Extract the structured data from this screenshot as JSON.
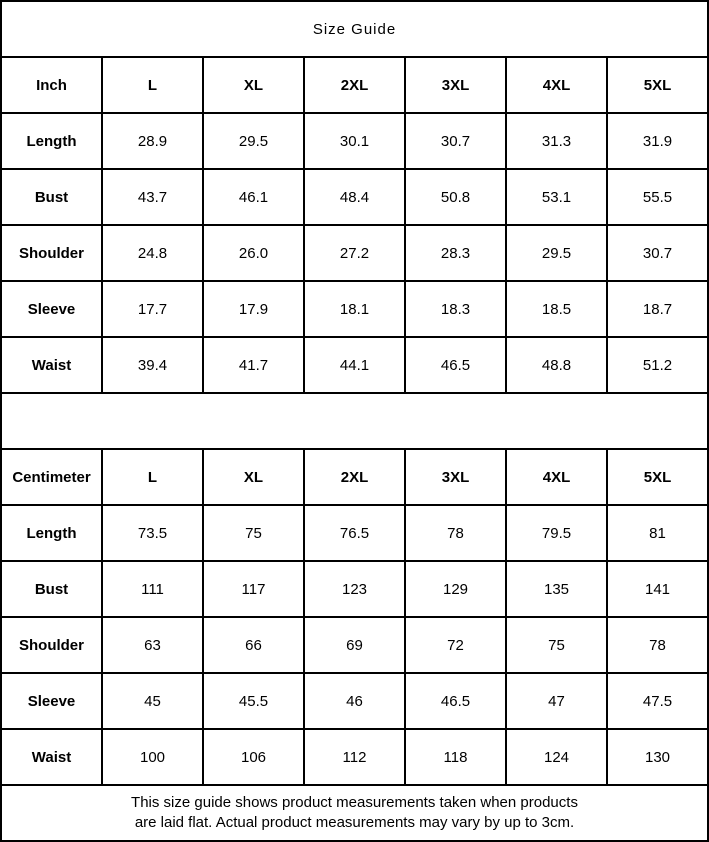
{
  "page": {
    "title": "Size Guide",
    "background_color": "#ffffff",
    "border_color": "#000000",
    "text_color": "#000000"
  },
  "tables": [
    {
      "unit_label": "Inch",
      "sizes": [
        "L",
        "XL",
        "2XL",
        "3XL",
        "4XL",
        "5XL"
      ],
      "rows": [
        {
          "label": "Length",
          "values": [
            "28.9",
            "29.5",
            "30.1",
            "30.7",
            "31.3",
            "31.9"
          ]
        },
        {
          "label": "Bust",
          "values": [
            "43.7",
            "46.1",
            "48.4",
            "50.8",
            "53.1",
            "55.5"
          ]
        },
        {
          "label": "Shoulder",
          "values": [
            "24.8",
            "26.0",
            "27.2",
            "28.3",
            "29.5",
            "30.7"
          ]
        },
        {
          "label": "Sleeve",
          "values": [
            "17.7",
            "17.9",
            "18.1",
            "18.3",
            "18.5",
            "18.7"
          ]
        },
        {
          "label": "Waist",
          "values": [
            "39.4",
            "41.7",
            "44.1",
            "46.5",
            "48.8",
            "51.2"
          ]
        }
      ]
    },
    {
      "unit_label": "Centimeter",
      "sizes": [
        "L",
        "XL",
        "2XL",
        "3XL",
        "4XL",
        "5XL"
      ],
      "rows": [
        {
          "label": "Length",
          "values": [
            "73.5",
            "75",
            "76.5",
            "78",
            "79.5",
            "81"
          ]
        },
        {
          "label": "Bust",
          "values": [
            "111",
            "117",
            "123",
            "129",
            "135",
            "141"
          ]
        },
        {
          "label": "Shoulder",
          "values": [
            "63",
            "66",
            "69",
            "72",
            "75",
            "78"
          ]
        },
        {
          "label": "Sleeve",
          "values": [
            "45",
            "45.5",
            "46",
            "46.5",
            "47",
            "47.5"
          ]
        },
        {
          "label": "Waist",
          "values": [
            "100",
            "106",
            "112",
            "118",
            "124",
            "130"
          ]
        }
      ]
    }
  ],
  "footer": {
    "line1": "This size guide shows product measurements taken when products",
    "line2": "are laid flat. Actual product measurements may vary by up to 3cm."
  }
}
